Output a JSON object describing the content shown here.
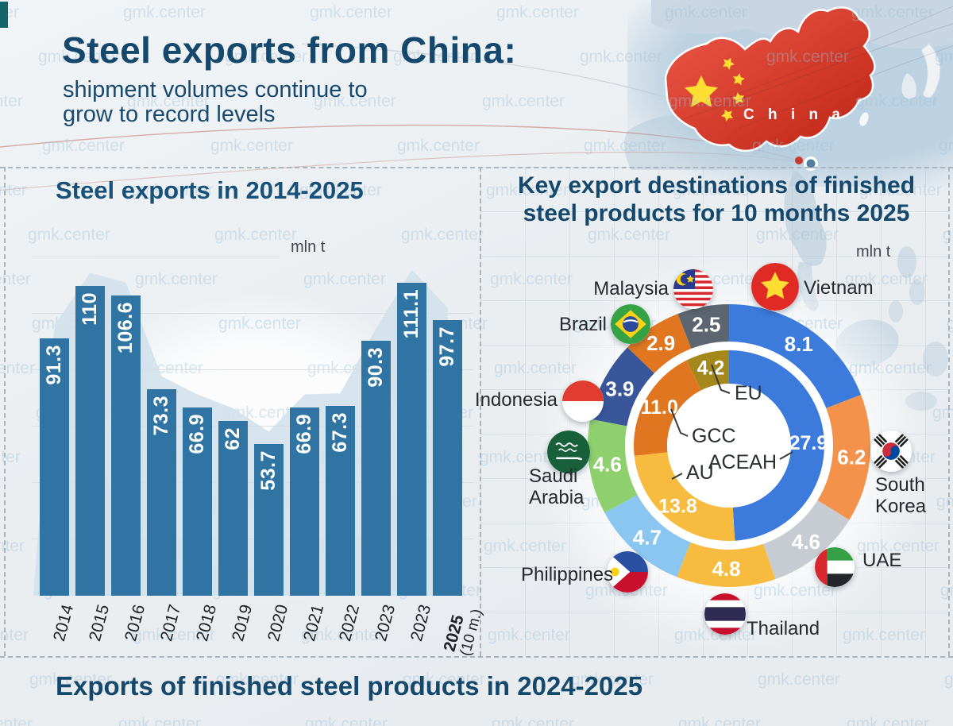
{
  "page": {
    "watermark": "gmk.center"
  },
  "header": {
    "title": "Steel exports from China:",
    "subtitle_line1": "shipment volumes continue to",
    "subtitle_line2": "grow to record levels"
  },
  "map": {
    "label": "C h i n a"
  },
  "footer": {
    "title": "Exports of finished steel products in 2024-2025"
  },
  "chart_data": [
    {
      "type": "bar",
      "title": "Steel exports in 2014-2025",
      "unit": "mln t",
      "categories": [
        "2014",
        "2015",
        "2016",
        "2017",
        "2018",
        "2019",
        "2020",
        "2021",
        "2022",
        "2023",
        "2023",
        "2025 (10 m.)"
      ],
      "values": [
        91.3,
        110,
        106.6,
        73.3,
        66.9,
        62,
        53.7,
        66.9,
        67.3,
        90.3,
        111.1,
        97.7
      ],
      "ylim": [
        0,
        120
      ],
      "gridline_step": 20,
      "bar_color": "#2F74A2",
      "grid": "horizontal"
    },
    {
      "type": "donut",
      "title": "Key export destinations of finished steel products for 10 months 2025",
      "title_lines": [
        "Key export destinations of finished",
        "steel products for 10 months 2025"
      ],
      "unit": "mln t",
      "outer_ring": [
        {
          "label": "Vietnam",
          "value": 8.1,
          "color": "#3C7BDC"
        },
        {
          "label": "South Korea",
          "value": 6.2,
          "color": "#F4924B"
        },
        {
          "label": "UAE",
          "value": 4.6,
          "color": "#C7CCD2"
        },
        {
          "label": "Thailand",
          "value": 4.8,
          "color": "#F7BC3F"
        },
        {
          "label": "Philippines",
          "value": 4.7,
          "color": "#8AC6F0"
        },
        {
          "label": "Saudi Arabia",
          "value": 4.6,
          "color": "#8FD06E"
        },
        {
          "label": "Indonesia",
          "value": 3.9,
          "color": "#3A569B"
        },
        {
          "label": "Brazil",
          "value": 2.9,
          "color": "#E0761F"
        },
        {
          "label": "Malaysia",
          "value": 2.5,
          "color": "#5D6670"
        }
      ],
      "inner_ring": [
        {
          "label": "ACEAH",
          "value": 27.9,
          "color": "#3C7BDC"
        },
        {
          "label": "AU",
          "value": 13.8,
          "color": "#F7BC3F"
        },
        {
          "label": "GCC",
          "value": 11.0,
          "color": "#E0761F"
        },
        {
          "label": "EU",
          "value": 4.2,
          "color": "#A5881B"
        }
      ]
    }
  ]
}
